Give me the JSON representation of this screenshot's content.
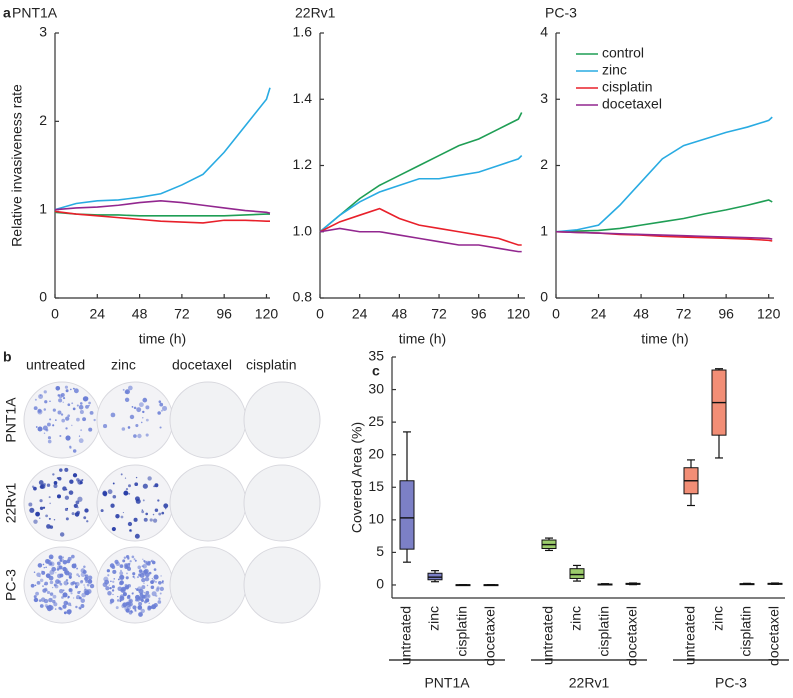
{
  "panel_labels": [
    "a",
    "b",
    "c"
  ],
  "plates": {
    "columns": [
      "untreated",
      "zinc",
      "docetaxel",
      "cisplatin"
    ],
    "rows": [
      "PNT1A",
      "22Rv1",
      "PC-3"
    ]
  },
  "chart_data": [
    {
      "type": "line",
      "title": "PNT1A",
      "ylabel": "Relative invasiveness rate",
      "xlabel": "time (h)",
      "x": [
        0,
        12,
        24,
        36,
        48,
        60,
        72,
        84,
        96,
        108,
        120,
        122
      ],
      "xlim": [
        0,
        122
      ],
      "xticks": [
        0,
        24,
        48,
        72,
        96,
        120
      ],
      "ylim": [
        0,
        3
      ],
      "yticks": [
        0,
        1,
        2,
        3
      ],
      "series": [
        {
          "name": " control",
          "color": "#1f9e55",
          "values": [
            0.97,
            0.95,
            0.94,
            0.94,
            0.93,
            0.93,
            0.93,
            0.93,
            0.93,
            0.94,
            0.95,
            0.95
          ]
        },
        {
          "name": "zinc",
          "color": "#29abe2",
          "values": [
            1.0,
            1.07,
            1.1,
            1.11,
            1.14,
            1.18,
            1.28,
            1.4,
            1.65,
            1.95,
            2.25,
            2.38
          ]
        },
        {
          "name": "cisplatin",
          "color": "#e8202a",
          "values": [
            0.98,
            0.95,
            0.93,
            0.91,
            0.89,
            0.87,
            0.86,
            0.85,
            0.88,
            0.88,
            0.87,
            0.87
          ]
        },
        {
          "name": "docetaxel",
          "color": "#92278f",
          "values": [
            1.0,
            1.02,
            1.03,
            1.05,
            1.08,
            1.1,
            1.08,
            1.05,
            1.02,
            0.99,
            0.97,
            0.96
          ]
        }
      ]
    },
    {
      "type": "line",
      "title": "22Rv1",
      "xlabel": "time (h)",
      "x": [
        0,
        12,
        24,
        36,
        48,
        60,
        72,
        84,
        96,
        108,
        120,
        122
      ],
      "xlim": [
        0,
        124
      ],
      "xticks": [
        0,
        24,
        48,
        72,
        96,
        120
      ],
      "ylim": [
        0.8,
        1.6
      ],
      "yticks": [
        0.8,
        {
          "value": 1,
          "label": "1.0"
        },
        1.2,
        1.4,
        1.6
      ],
      "series": [
        {
          "name": " control",
          "color": "#1f9e55",
          "values": [
            1.0,
            1.05,
            1.1,
            1.14,
            1.17,
            1.2,
            1.23,
            1.26,
            1.28,
            1.31,
            1.34,
            1.36
          ]
        },
        {
          "name": "zinc",
          "color": "#29abe2",
          "values": [
            1.0,
            1.05,
            1.09,
            1.12,
            1.14,
            1.16,
            1.16,
            1.17,
            1.18,
            1.2,
            1.22,
            1.23
          ]
        },
        {
          "name": "cisplatin",
          "color": "#e8202a",
          "values": [
            1.0,
            1.03,
            1.05,
            1.07,
            1.04,
            1.02,
            1.01,
            1.0,
            0.99,
            0.98,
            0.96,
            0.96
          ]
        },
        {
          "name": "docetaxel",
          "color": "#92278f",
          "values": [
            1.0,
            1.01,
            1.0,
            1.0,
            0.99,
            0.98,
            0.97,
            0.96,
            0.96,
            0.95,
            0.94,
            0.94
          ]
        }
      ]
    },
    {
      "type": "line",
      "title": "PC-3",
      "xlabel": "time (h)",
      "legend": "upper left",
      "x": [
        0,
        12,
        24,
        36,
        48,
        60,
        72,
        84,
        96,
        108,
        120,
        122
      ],
      "xlim": [
        0,
        123
      ],
      "xticks": [
        0,
        24,
        48,
        72,
        96,
        120
      ],
      "ylim": [
        0,
        4
      ],
      "yticks": [
        0,
        1,
        2,
        3,
        4
      ],
      "series": [
        {
          "name": " control",
          "color": "#1f9e55",
          "values": [
            1.0,
            1.01,
            1.02,
            1.05,
            1.1,
            1.15,
            1.2,
            1.27,
            1.33,
            1.4,
            1.48,
            1.45
          ]
        },
        {
          "name": "zinc",
          "color": "#29abe2",
          "values": [
            1.0,
            1.03,
            1.1,
            1.4,
            1.75,
            2.1,
            2.3,
            2.4,
            2.5,
            2.58,
            2.68,
            2.73
          ]
        },
        {
          "name": "cisplatin",
          "color": "#e8202a",
          "values": [
            1.0,
            0.99,
            0.98,
            0.96,
            0.95,
            0.93,
            0.92,
            0.91,
            0.9,
            0.89,
            0.87,
            0.86
          ]
        },
        {
          "name": "docetaxel",
          "color": "#92278f",
          "values": [
            1.0,
            0.99,
            0.98,
            0.97,
            0.96,
            0.95,
            0.94,
            0.93,
            0.92,
            0.91,
            0.9,
            0.89
          ]
        }
      ]
    },
    {
      "type": "box",
      "ylabel": "Covered Area (%)",
      "ylim": [
        -2,
        35
      ],
      "yticks": [
        0,
        5,
        10,
        15,
        20,
        25,
        30,
        35
      ],
      "categories": [
        "untreated",
        "zinc",
        "cisplatin",
        "docetaxel",
        "untreated",
        "zinc",
        "cisplatin",
        "docetaxel",
        "untreated",
        "zinc",
        "cisplatin",
        "docetaxel"
      ],
      "groups": [
        "PNT1A",
        "22Rv1",
        "PC-3"
      ],
      "group_colors": [
        "#7c80c6",
        "#9ccc6c",
        "#f28e76"
      ],
      "boxes": [
        {
          "min": 3.5,
          "q1": 5.5,
          "median": 10.3,
          "q3": 16,
          "max": 23.5
        },
        {
          "min": 0.5,
          "q1": 0.8,
          "median": 1.2,
          "q3": 1.8,
          "max": 2.2
        },
        {
          "min": 0,
          "q1": 0,
          "median": 0,
          "q3": 0.05,
          "max": 0.05
        },
        {
          "min": 0,
          "q1": 0,
          "median": 0,
          "q3": 0.05,
          "max": 0.05
        },
        {
          "min": 5.3,
          "q1": 5.6,
          "median": 6.2,
          "q3": 6.9,
          "max": 7.2
        },
        {
          "min": 0.6,
          "q1": 1.0,
          "median": 1.6,
          "q3": 2.5,
          "max": 3.0
        },
        {
          "min": 0.05,
          "q1": 0.1,
          "median": 0.1,
          "q3": 0.15,
          "max": 0.2
        },
        {
          "min": 0.05,
          "q1": 0.1,
          "median": 0.15,
          "q3": 0.25,
          "max": 0.3
        },
        {
          "min": 12.2,
          "q1": 14,
          "median": 16,
          "q3": 18,
          "max": 19.2
        },
        {
          "min": 19.5,
          "q1": 23,
          "median": 28,
          "q3": 33,
          "max": 33.2
        },
        {
          "min": 0.1,
          "q1": 0.1,
          "median": 0.15,
          "q3": 0.2,
          "max": 0.25
        },
        {
          "min": 0.1,
          "q1": 0.15,
          "median": 0.2,
          "q3": 0.25,
          "max": 0.3
        }
      ]
    }
  ]
}
